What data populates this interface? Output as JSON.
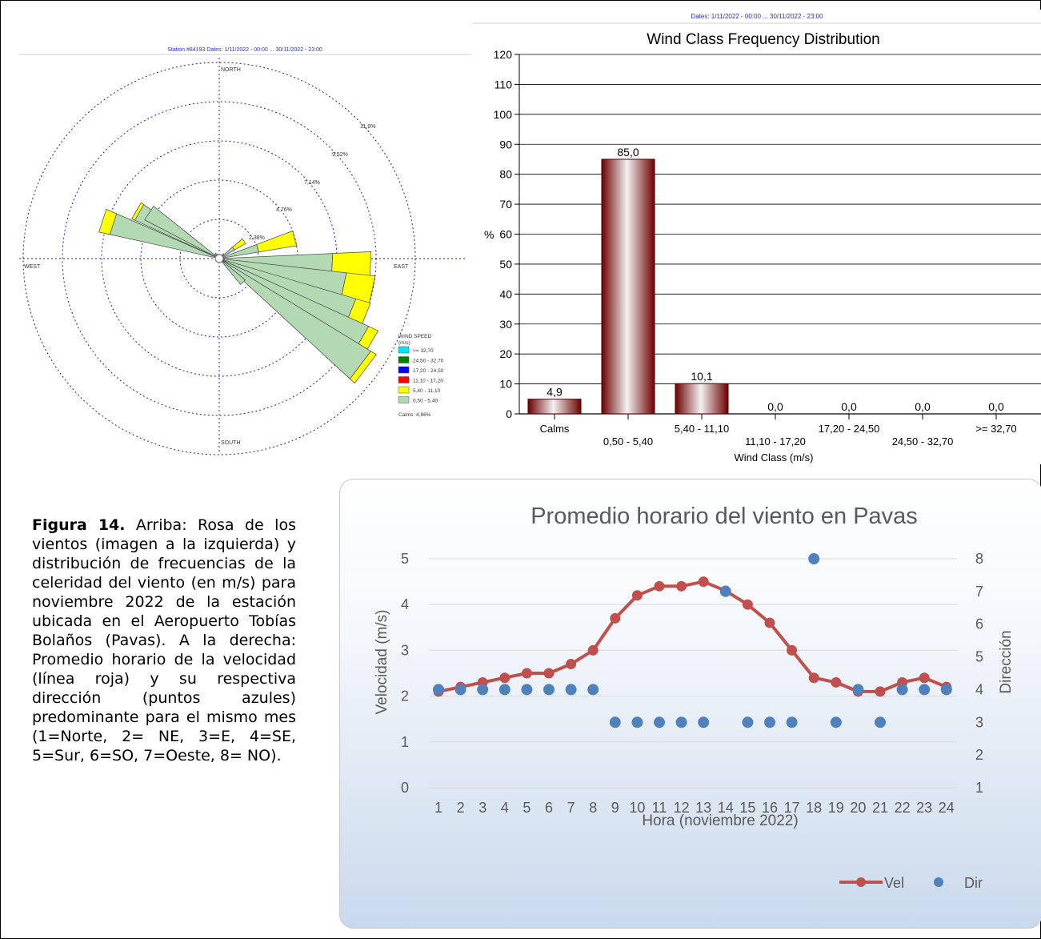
{
  "wind_rose": {
    "header": "Station #84193  Dates: 1/11/2022 - 00:00 ... 30/11/2022 - 23:00",
    "directions": {
      "north": "NORTH",
      "south": "SOUTH",
      "east": "EAST",
      "west": "WEST"
    },
    "ring_labels": [
      "2,38%",
      "4,76%",
      "7,14%",
      "9,52%",
      "11,9%"
    ],
    "legend_title": "WIND SPEED",
    "legend_unit": "(m/s)",
    "legend": [
      {
        "label": ">= 32,70",
        "color": "#00e5ff"
      },
      {
        "label": "24,50 - 32,70",
        "color": "#008000"
      },
      {
        "label": "17,20 - 24,50",
        "color": "#0000ff"
      },
      {
        "label": "11,10 - 17,20",
        "color": "#ff0000"
      },
      {
        "label": "5,40 - 11,10",
        "color": "#ffff00"
      },
      {
        "label": "0,50 - 5,40",
        "color": "#b3d9b3"
      }
    ],
    "calms": "Calms: 4,86%"
  },
  "chart_data": [
    {
      "type": "bar",
      "header": "Dates: 1/11/2022 - 00:00 ... 30/11/2022 - 23:00",
      "title": "Wind Class Frequency Distribution",
      "xlabel": "Wind Class (m/s)",
      "ylabel": "%",
      "categories": [
        "Calms",
        "0,50 - 5,40",
        "5,40 - 11,10",
        "11,10 - 17,20",
        "17,20 - 24,50",
        "24,50 - 32,70",
        ">= 32,70"
      ],
      "values": [
        4.9,
        85.0,
        10.1,
        0.0,
        0.0,
        0.0,
        0.0
      ],
      "value_labels": [
        "4,9",
        "85,0",
        "10,1",
        "0,0",
        "0,0",
        "0,0",
        "0,0"
      ],
      "ylim": [
        0,
        120
      ],
      "yticks": [
        0,
        10,
        20,
        30,
        40,
        50,
        60,
        70,
        80,
        90,
        100,
        110,
        120
      ],
      "bar_color": "#8b0000",
      "grid": true
    },
    {
      "type": "line",
      "title": "Promedio horario del viento en Pavas",
      "xlabel": "Hora (noviembre 2022)",
      "ylabel": "Velocidad (m/s)",
      "ylabel_right": "Dirección",
      "x": [
        1,
        2,
        3,
        4,
        5,
        6,
        7,
        8,
        9,
        10,
        11,
        12,
        13,
        14,
        15,
        16,
        17,
        18,
        19,
        20,
        21,
        22,
        23,
        24
      ],
      "ylim": [
        0,
        5
      ],
      "yticks": [
        0,
        1,
        2,
        3,
        4,
        5
      ],
      "ylim_right": [
        1,
        8
      ],
      "yticks_right": [
        1,
        2,
        3,
        4,
        5,
        6,
        7,
        8
      ],
      "series": [
        {
          "name": "Vel",
          "axis": "left",
          "style": "line-marker",
          "color": "#c0504d",
          "values": [
            2.1,
            2.2,
            2.3,
            2.4,
            2.5,
            2.5,
            2.7,
            3.0,
            3.7,
            4.2,
            4.4,
            4.4,
            4.5,
            4.3,
            4.0,
            3.6,
            3.0,
            2.4,
            2.3,
            2.1,
            2.1,
            2.3,
            2.4,
            2.2
          ]
        },
        {
          "name": "Dir",
          "axis": "right",
          "style": "marker",
          "color": "#4f81bd",
          "values": [
            4,
            4,
            4,
            4,
            4,
            4,
            4,
            4,
            3,
            3,
            3,
            3,
            3,
            7,
            3,
            3,
            3,
            8,
            3,
            4,
            3,
            4,
            4,
            4
          ]
        }
      ],
      "legend_position": "bottom-right",
      "grid": true
    }
  ],
  "caption": {
    "label": "Figura 14.",
    "text": " Arriba: Rosa de los vientos (imagen a la izquierda) y distribución de frecuencias de la celeridad del viento (en m/s) para noviembre 2022 de la estación ubicada en el Aeropuerto Tobías Bolaños (Pavas). A la derecha: Promedio horario de la velocidad (línea roja) y su respectiva dirección (puntos azules) predominante para el mismo mes (1=Norte, 2= NE, 3=E, 4=SE, 5=Sur, 6=SO, 7=Oeste, 8= NO)."
  }
}
